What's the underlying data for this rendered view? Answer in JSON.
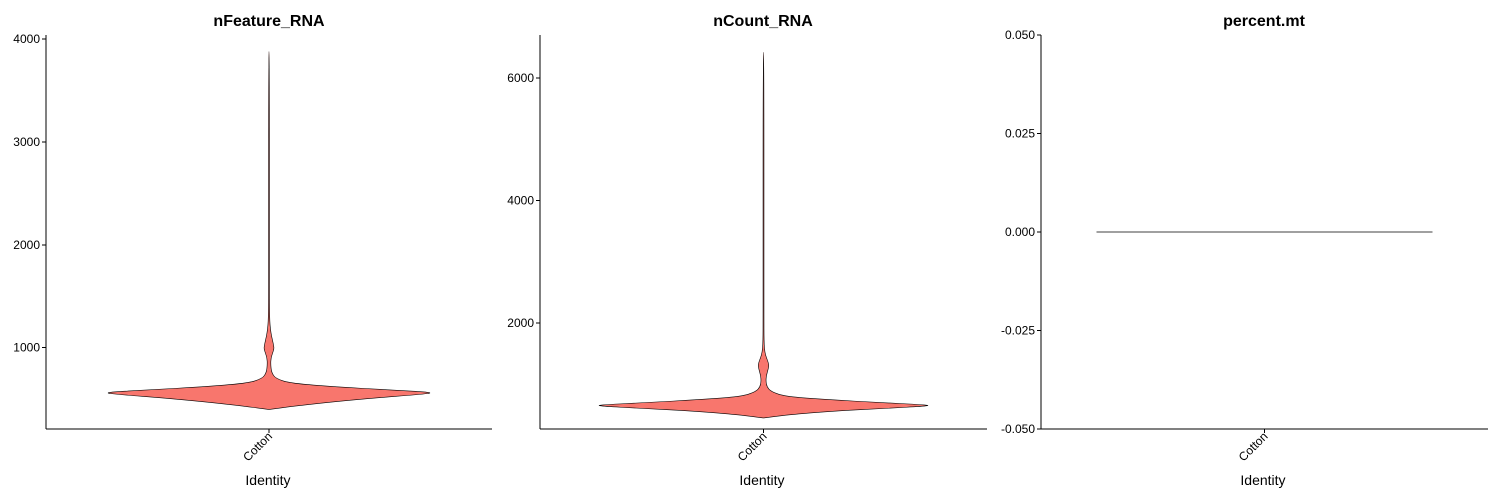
{
  "chart_data": [
    {
      "type": "violin",
      "title": "nFeature_RNA",
      "xlabel": "Identity",
      "ylabel": "",
      "categories": [
        "Cotton"
      ],
      "ylim": [
        210,
        4040
      ],
      "y_ticks": [
        1000,
        2000,
        3000,
        4000
      ],
      "y_tick_labels": [
        "1000",
        "2000",
        "3000",
        "4000"
      ],
      "fill_color": "#F8766D",
      "series": [
        {
          "category": "Cotton",
          "y_min": 400,
          "y_max": 3880,
          "density_profile": [
            [
              400,
              0.0
            ],
            [
              430,
              0.14
            ],
            [
              470,
              0.36
            ],
            [
              510,
              0.62
            ],
            [
              545,
              0.9
            ],
            [
              565,
              1.0
            ],
            [
              590,
              0.72
            ],
            [
              620,
              0.4
            ],
            [
              655,
              0.13
            ],
            [
              700,
              0.04
            ],
            [
              760,
              0.015
            ],
            [
              840,
              0.01
            ],
            [
              900,
              0.012
            ],
            [
              950,
              0.022
            ],
            [
              990,
              0.03
            ],
            [
              1020,
              0.028
            ],
            [
              1080,
              0.02
            ],
            [
              1140,
              0.012
            ],
            [
              1220,
              0.006
            ],
            [
              1300,
              0.004
            ],
            [
              1400,
              0.003
            ],
            [
              1550,
              0.002
            ],
            [
              1700,
              0.0015
            ],
            [
              2200,
              0.001
            ],
            [
              3880,
              0.0008
            ]
          ]
        }
      ],
      "grid": false,
      "legend": "none"
    },
    {
      "type": "violin",
      "title": "nCount_RNA",
      "xlabel": "Identity",
      "ylabel": "",
      "categories": [
        "Cotton"
      ],
      "ylim": [
        270,
        6700
      ],
      "y_ticks": [
        2000,
        4000,
        6000
      ],
      "y_tick_labels": [
        "2000",
        "4000",
        "6000"
      ],
      "fill_color": "#F8766D",
      "series": [
        {
          "category": "Cotton",
          "y_min": 450,
          "y_max": 6420,
          "density_profile": [
            [
              450,
              0.0
            ],
            [
              500,
              0.14
            ],
            [
              560,
              0.4
            ],
            [
              610,
              0.75
            ],
            [
              640,
              0.95
            ],
            [
              660,
              1.0
            ],
            [
              700,
              0.7
            ],
            [
              750,
              0.38
            ],
            [
              800,
              0.13
            ],
            [
              880,
              0.045
            ],
            [
              960,
              0.02
            ],
            [
              1060,
              0.014
            ],
            [
              1150,
              0.018
            ],
            [
              1230,
              0.026
            ],
            [
              1300,
              0.032
            ],
            [
              1360,
              0.028
            ],
            [
              1430,
              0.018
            ],
            [
              1520,
              0.008
            ],
            [
              1650,
              0.004
            ],
            [
              1800,
              0.003
            ],
            [
              2000,
              0.002
            ],
            [
              2500,
              0.0012
            ],
            [
              6420,
              0.0008
            ]
          ]
        }
      ],
      "grid": false,
      "legend": "none"
    },
    {
      "type": "violin",
      "title": "percent.mt",
      "xlabel": "Identity",
      "ylabel": "",
      "categories": [
        "Cotton"
      ],
      "ylim": [
        -0.05,
        0.05
      ],
      "y_ticks": [
        -0.05,
        -0.025,
        0,
        0.025,
        0.05
      ],
      "y_tick_labels": [
        "-0.050",
        "-0.025",
        "0.000",
        "0.025",
        "0.050"
      ],
      "fill_color": "#F8766D",
      "series": [
        {
          "category": "Cotton",
          "y_min": 0,
          "y_max": 0,
          "density_profile": [
            [
              0,
              1.0
            ]
          ]
        }
      ],
      "grid": false,
      "legend": "none"
    }
  ]
}
